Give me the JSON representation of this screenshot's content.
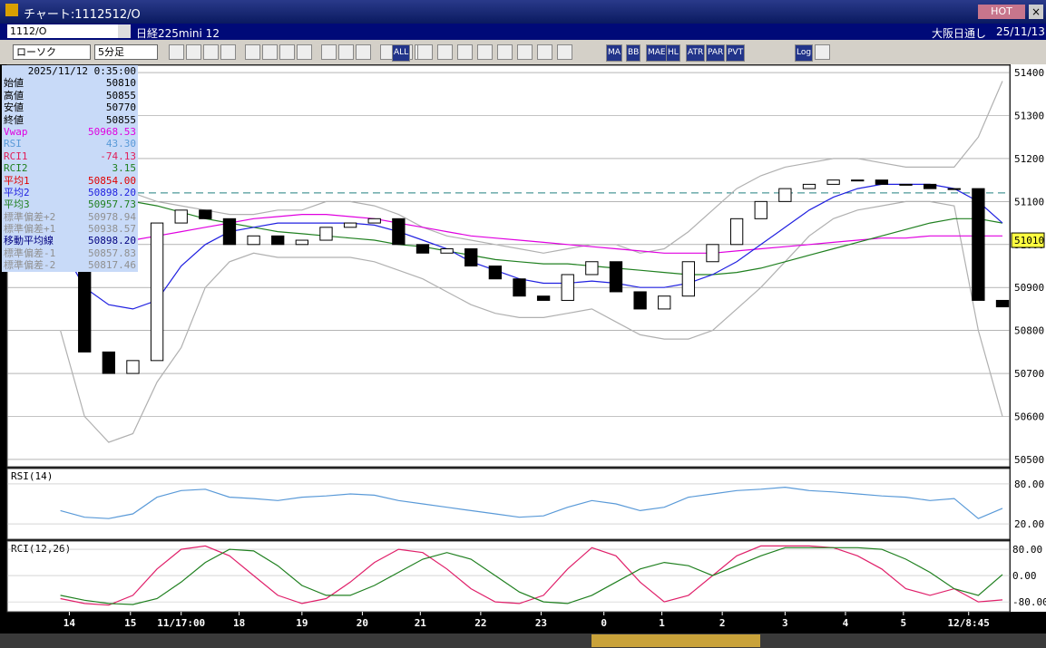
{
  "window": {
    "title": "チャート:1112512/O",
    "hot": "HOT"
  },
  "header": {
    "symbol": "1112/O",
    "name": "日経225mini 12",
    "market": "大阪日通し",
    "date": "25/11/13"
  },
  "toolbar": {
    "chart_type": "ローソク",
    "interval": "5分足",
    "buttons": [
      "ALL",
      "MA",
      "BB",
      "MAE",
      "HL",
      "ATR",
      "PAR",
      "PVT",
      "Log"
    ]
  },
  "info_panel": {
    "datetime": "2025/11/12 0:35:00",
    "rows": [
      {
        "label": "始値",
        "value": "50810",
        "color": "#000000"
      },
      {
        "label": "高値",
        "value": "50855",
        "color": "#000000"
      },
      {
        "label": "安値",
        "value": "50770",
        "color": "#000000"
      },
      {
        "label": "終値",
        "value": "50855",
        "color": "#000000"
      },
      {
        "label": "Vwap",
        "value": "50968.53",
        "color": "#e000e0"
      },
      {
        "label": "RSI",
        "value": "43.30",
        "color": "#5a9ad8"
      },
      {
        "label": "RCI1",
        "value": "-74.13",
        "color": "#e0205a"
      },
      {
        "label": "RCI2",
        "value": "3.15",
        "color": "#208020"
      },
      {
        "label": "平均1",
        "value": "50854.00",
        "color": "#e00000"
      },
      {
        "label": "平均2",
        "value": "50898.20",
        "color": "#2020e0"
      },
      {
        "label": "平均3",
        "value": "50957.73",
        "color": "#208020"
      },
      {
        "label": "標準偏差+2",
        "value": "50978.94",
        "color": "#909090"
      },
      {
        "label": "標準偏差+1",
        "value": "50938.57",
        "color": "#909090"
      },
      {
        "label": "移動平均線",
        "value": "50898.20",
        "color": "#000080"
      },
      {
        "label": "標準偏差-1",
        "value": "50857.83",
        "color": "#909090"
      },
      {
        "label": "標準偏差-2",
        "value": "50817.46",
        "color": "#909090"
      }
    ]
  },
  "chart_data": {
    "type": "candlestick",
    "xlim": [
      -2.2,
      39.3
    ],
    "xticks": [
      {
        "value": 0.37,
        "label": "14"
      },
      {
        "value": 2.9,
        "label": "15"
      },
      {
        "value": 5.0,
        "label": "11/17:00"
      },
      {
        "value": 7.4,
        "label": "18"
      },
      {
        "value": 10,
        "label": "19"
      },
      {
        "value": 12.5,
        "label": "20"
      },
      {
        "value": 14.9,
        "label": "21"
      },
      {
        "value": 17.4,
        "label": "22"
      },
      {
        "value": 19.9,
        "label": "23"
      },
      {
        "value": 22.5,
        "label": "0"
      },
      {
        "value": 24.9,
        "label": "1"
      },
      {
        "value": 27.4,
        "label": "2"
      },
      {
        "value": 30,
        "label": "3"
      },
      {
        "value": 32.5,
        "label": "4"
      },
      {
        "value": 34.9,
        "label": "5"
      },
      {
        "value": 37.6,
        "label": "12/8:45"
      }
    ],
    "ylim": [
      50483,
      51417
    ],
    "yticks": [
      50500,
      50600,
      50700,
      50800,
      50900,
      51000,
      51100,
      51200,
      51300,
      51400
    ],
    "last_price": 51010,
    "ref_line": 51120,
    "close": [
      50950,
      50750,
      50700,
      50730,
      51050,
      51080,
      51060,
      51000,
      51020,
      51000,
      51010,
      51040,
      51050,
      51060,
      51000,
      50980,
      50990,
      50950,
      50920,
      50880,
      50870,
      50930,
      50960,
      50890,
      50850,
      50880,
      50960,
      51000,
      51060,
      51100,
      51130,
      51140,
      51150,
      51150,
      51140,
      51140,
      51130,
      51130,
      50870,
      50855
    ],
    "series": [
      {
        "color": "#b0b0b0",
        "values": [
          51300,
          51270,
          51200,
          51120,
          51100,
          51090,
          51080,
          51070,
          51070,
          51080,
          51080,
          51100,
          51100,
          51090,
          51070,
          51040,
          51020,
          51010,
          51000,
          50990,
          50980,
          50990,
          51000,
          51000,
          50980,
          50990,
          51030,
          51080,
          51130,
          51160,
          51180,
          51190,
          51200,
          51200,
          51190,
          51180,
          51180,
          51180,
          51250,
          51380
        ]
      },
      {
        "color": "#b0b0b0",
        "values": [
          50800,
          50600,
          50540,
          50560,
          50680,
          50760,
          50900,
          50960,
          50980,
          50970,
          50970,
          50970,
          50970,
          50960,
          50940,
          50920,
          50890,
          50860,
          50840,
          50830,
          50830,
          50840,
          50850,
          50820,
          50790,
          50780,
          50780,
          50800,
          50850,
          50900,
          50960,
          51020,
          51060,
          51080,
          51090,
          51100,
          51100,
          51090,
          50800,
          50600
        ]
      },
      {
        "color": "#e000e0",
        "values": [
          51000,
          51000,
          51005,
          51010,
          51020,
          51030,
          51040,
          51050,
          51060,
          51065,
          51070,
          51070,
          51065,
          51060,
          51050,
          51040,
          51030,
          51020,
          51015,
          51010,
          51005,
          51000,
          50995,
          50990,
          50985,
          50980,
          50980,
          50980,
          50985,
          50990,
          50995,
          51000,
          51005,
          51010,
          51015,
          51015,
          51020,
          51020,
          51020,
          51020
        ]
      },
      {
        "color": "#208020",
        "values": [
          51150,
          51130,
          51110,
          51100,
          51090,
          51075,
          51060,
          51050,
          51040,
          51030,
          51025,
          51020,
          51015,
          51010,
          51000,
          50995,
          50985,
          50975,
          50965,
          50960,
          50955,
          50955,
          50950,
          50945,
          50940,
          50935,
          50930,
          50930,
          50935,
          50945,
          50960,
          50975,
          50990,
          51005,
          51020,
          51035,
          51050,
          51060,
          51060,
          51050
        ]
      },
      {
        "color": "#2020e0",
        "values": [
          51000,
          50900,
          50860,
          50850,
          50870,
          50950,
          51000,
          51030,
          51040,
          51050,
          51050,
          51050,
          51050,
          51045,
          51030,
          51010,
          50990,
          50960,
          50940,
          50920,
          50910,
          50910,
          50915,
          50910,
          50900,
          50900,
          50910,
          50930,
          50960,
          51000,
          51040,
          51080,
          51110,
          51130,
          51140,
          51140,
          51140,
          51130,
          51100,
          51050
        ]
      }
    ],
    "rsi": {
      "label": "RSI(14)",
      "color": "#5a9ad8",
      "ylim": [
        -3,
        103
      ],
      "yticks": [
        {
          "value": 80,
          "label": "80.00"
        },
        {
          "value": 20,
          "label": "20.00"
        }
      ],
      "values": [
        40,
        30,
        28,
        35,
        60,
        70,
        72,
        60,
        58,
        55,
        60,
        62,
        65,
        63,
        55,
        50,
        45,
        40,
        35,
        30,
        32,
        45,
        55,
        50,
        40,
        45,
        60,
        65,
        70,
        72,
        75,
        70,
        68,
        65,
        62,
        60,
        55,
        58,
        28,
        43.3
      ]
    },
    "rci": {
      "label": "RCI(12,26)",
      "ylim": [
        -110,
        105
      ],
      "yticks": [
        {
          "value": 80,
          "label": "80.00"
        },
        {
          "value": 0,
          "label": "0.00"
        },
        {
          "value": -80,
          "label": "-80.00"
        }
      ],
      "series": [
        {
          "color": "#e0206a",
          "values": [
            -70,
            -85,
            -90,
            -60,
            20,
            80,
            90,
            60,
            0,
            -60,
            -85,
            -70,
            -20,
            40,
            80,
            70,
            20,
            -40,
            -80,
            -85,
            -60,
            20,
            85,
            60,
            -20,
            -80,
            -60,
            0,
            60,
            90,
            90,
            90,
            85,
            60,
            20,
            -40,
            -60,
            -40,
            -80,
            -74
          ]
        },
        {
          "color": "#208020",
          "values": [
            -60,
            -75,
            -85,
            -88,
            -70,
            -20,
            40,
            80,
            75,
            30,
            -30,
            -60,
            -60,
            -30,
            10,
            50,
            70,
            50,
            0,
            -50,
            -80,
            -85,
            -60,
            -20,
            20,
            40,
            30,
            0,
            30,
            60,
            85,
            85,
            85,
            85,
            80,
            50,
            10,
            -40,
            -60,
            3
          ]
        }
      ]
    }
  }
}
